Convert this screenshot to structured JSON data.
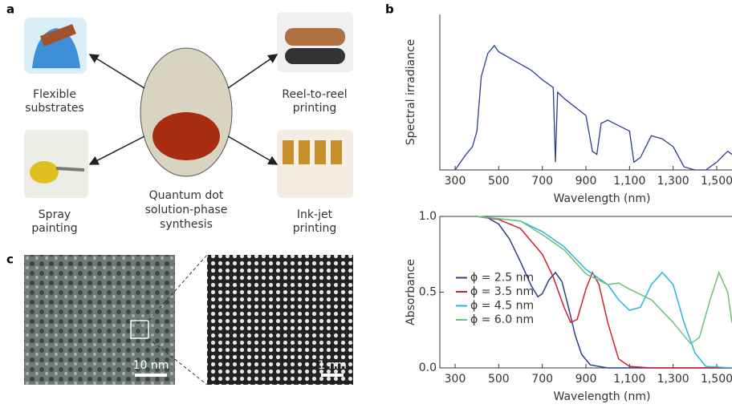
{
  "panel_labels": [
    "a",
    "b",
    "c"
  ],
  "panel_a": {
    "center": [
      "Quantum dot",
      "solution-phase",
      "synthesis"
    ],
    "items": [
      {
        "label": [
          "Flexible",
          "substrates"
        ]
      },
      {
        "label": [
          "Reel-to-reel",
          "printing"
        ]
      },
      {
        "label": [
          "Spray",
          "painting"
        ]
      },
      {
        "label": [
          "Ink-jet",
          "printing"
        ]
      }
    ]
  },
  "chart_data": [
    {
      "type": "line",
      "x_label": "Wavelength (nm)",
      "y_label": "Spectral irradiance",
      "color": "#2b3d8f",
      "x": [
        300,
        350,
        380,
        400,
        420,
        450,
        480,
        500,
        550,
        600,
        650,
        700,
        750,
        760,
        770,
        800,
        900,
        930,
        950,
        970,
        1000,
        1100,
        1120,
        1150,
        1200,
        1250,
        1300,
        1350,
        1400,
        1450,
        1500,
        1550,
        1570
      ],
      "values": [
        0.0,
        0.1,
        0.15,
        0.25,
        0.6,
        0.75,
        0.8,
        0.76,
        0.72,
        0.68,
        0.64,
        0.58,
        0.53,
        0.05,
        0.5,
        0.46,
        0.35,
        0.12,
        0.1,
        0.3,
        0.32,
        0.25,
        0.05,
        0.08,
        0.22,
        0.2,
        0.15,
        0.02,
        0.0,
        0.0,
        0.05,
        0.12,
        0.1
      ],
      "xlim": [
        230,
        1570
      ],
      "ylim": [
        0,
        1
      ],
      "xticks": [
        300,
        500,
        700,
        900,
        {
          "value": 1100,
          "label": "1,100"
        },
        {
          "value": 1300,
          "label": "1,300"
        },
        {
          "value": 1500,
          "label": "1,500"
        }
      ]
    },
    {
      "type": "line",
      "x_label": "Wavelength (nm)",
      "y_label": "Absorbance",
      "legend": "lower left",
      "xlim": [
        230,
        1570
      ],
      "ylim": [
        0,
        1
      ],
      "xticks": [
        300,
        500,
        700,
        900,
        {
          "value": 1100,
          "label": "1,100"
        },
        {
          "value": 1300,
          "label": "1,300"
        },
        {
          "value": 1500,
          "label": "1,500"
        }
      ],
      "yticks": [
        {
          "value": 0,
          "label": "0.0"
        },
        0.5,
        {
          "value": 1,
          "label": "1.0"
        }
      ],
      "series": [
        {
          "name": "ϕ = 2.5 nm",
          "color": "#2b3d8f",
          "x": [
            400,
            450,
            500,
            550,
            600,
            650,
            680,
            700,
            730,
            760,
            790,
            820,
            850,
            880,
            920,
            1000,
            1570
          ],
          "values": [
            1.0,
            0.99,
            0.95,
            0.85,
            0.7,
            0.54,
            0.47,
            0.49,
            0.58,
            0.63,
            0.57,
            0.4,
            0.22,
            0.09,
            0.02,
            0.0,
            0.0
          ]
        },
        {
          "name": "ϕ = 3.5 nm",
          "color": "#d0202e",
          "x": [
            400,
            500,
            600,
            700,
            750,
            800,
            830,
            860,
            900,
            930,
            960,
            1000,
            1050,
            1100,
            1200,
            1570
          ],
          "values": [
            1.0,
            0.98,
            0.92,
            0.75,
            0.6,
            0.4,
            0.3,
            0.32,
            0.52,
            0.63,
            0.55,
            0.3,
            0.06,
            0.01,
            0.0,
            0.0
          ]
        },
        {
          "name": "ϕ = 4.5 nm",
          "color": "#27b5db",
          "x": [
            400,
            600,
            700,
            800,
            900,
            1000,
            1050,
            1100,
            1150,
            1200,
            1250,
            1300,
            1350,
            1400,
            1450,
            1570
          ],
          "values": [
            1.0,
            0.97,
            0.9,
            0.8,
            0.65,
            0.55,
            0.45,
            0.38,
            0.4,
            0.55,
            0.63,
            0.55,
            0.3,
            0.1,
            0.01,
            0.0
          ]
        },
        {
          "name": "ϕ = 6.0 nm",
          "color": "#6cc07a",
          "x": [
            400,
            600,
            700,
            800,
            900,
            1000,
            1050,
            1100,
            1200,
            1300,
            1380,
            1420,
            1470,
            1510,
            1550,
            1570
          ],
          "values": [
            1.0,
            0.97,
            0.88,
            0.78,
            0.62,
            0.55,
            0.56,
            0.52,
            0.45,
            0.3,
            0.16,
            0.2,
            0.45,
            0.63,
            0.5,
            0.3
          ]
        }
      ]
    }
  ],
  "panel_c": {
    "scale_bars": [
      "10 nm",
      "1 nm"
    ]
  }
}
